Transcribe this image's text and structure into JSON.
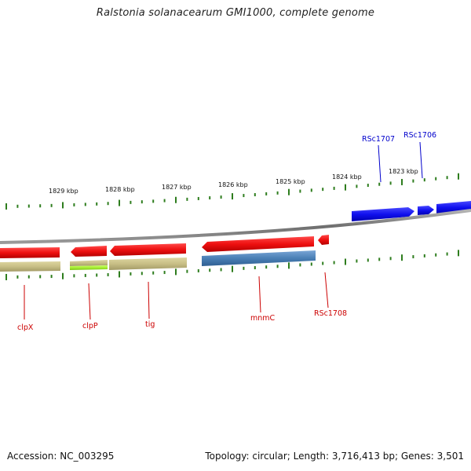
{
  "title": "Ralstonia solanacearum GMI1000, complete genome",
  "footer": {
    "accession": "Accession: NC_003295",
    "summary": "Topology: circular; Length: 3,716,413 bp; Genes: 3,501"
  },
  "colors": {
    "backbone": "#777777",
    "tick": "#2e7d1e",
    "forward_gene": "#1010ee",
    "reverse_gene": "#ee1010",
    "forward_label": "#0000cc",
    "reverse_label": "#cc0000",
    "cds_tan": "#c8bf86",
    "cds_lime": "#a6ee33",
    "cds_steel": "#4a7fb5"
  },
  "scale": {
    "labels": [
      "1829 kbp",
      "1828 kbp",
      "1827 kbp",
      "1826 kbp",
      "1825 kbp",
      "1824 kbp",
      "1823 kbp"
    ]
  },
  "genes": {
    "forward": [
      {
        "name": "RSc1707",
        "label": "RSc1707"
      },
      {
        "name": "RSc1706",
        "label": "RSc1706"
      }
    ],
    "reverse": [
      {
        "name": "clpX",
        "label": "clpX"
      },
      {
        "name": "clpP",
        "label": "clpP"
      },
      {
        "name": "tig",
        "label": "tig"
      },
      {
        "name": "mnmC",
        "label": "mnmC"
      },
      {
        "name": "RSc1708",
        "label": "RSc1708"
      }
    ]
  }
}
